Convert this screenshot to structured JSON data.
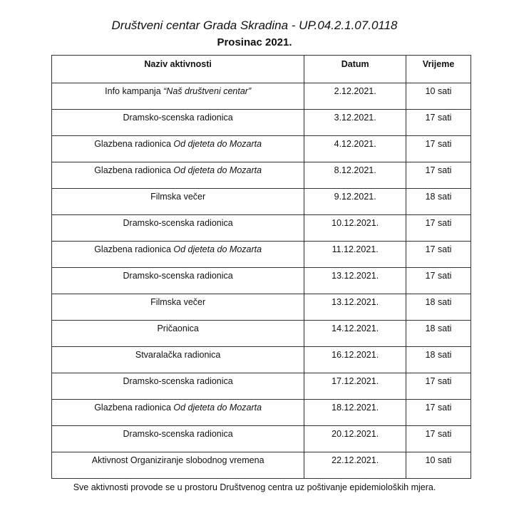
{
  "title": "Društveni centar Grada Skradina - UP.04.2.1.07.0118",
  "subtitle": "Prosinac 2021.",
  "table": {
    "headers": [
      "Naziv aktivnosti",
      "Datum",
      "Vrijeme"
    ],
    "rows": [
      {
        "name": "Info kampanja ",
        "name_italic": "“Naš društveni centar”",
        "date": "2.12.2021.",
        "time": "10 sati"
      },
      {
        "name": "Dramsko-scenska radionica",
        "name_italic": "",
        "date": "3.12.2021.",
        "time": "17 sati"
      },
      {
        "name": "Glazbena radionica ",
        "name_italic": "Od djeteta do Mozarta",
        "date": "4.12.2021.",
        "time": "17 sati"
      },
      {
        "name": "Glazbena radionica ",
        "name_italic": "Od djeteta do Mozarta",
        "date": "8.12.2021.",
        "time": "17 sati"
      },
      {
        "name": "Filmska večer",
        "name_italic": "",
        "date": "9.12.2021.",
        "time": "18 sati"
      },
      {
        "name": "Dramsko-scenska radionica",
        "name_italic": "",
        "date": "10.12.2021.",
        "time": "17 sati"
      },
      {
        "name": "Glazbena radionica ",
        "name_italic": "Od djeteta do Mozarta",
        "date": "11.12.2021.",
        "time": "17 sati"
      },
      {
        "name": "Dramsko-scenska radionica",
        "name_italic": "",
        "date": "13.12.2021.",
        "time": "17 sati"
      },
      {
        "name": "Filmska večer",
        "name_italic": "",
        "date": "13.12.2021.",
        "time": "18 sati"
      },
      {
        "name": "Pričaonica",
        "name_italic": "",
        "date": "14.12.2021.",
        "time": "18 sati"
      },
      {
        "name": "Stvaralačka radionica",
        "name_italic": "",
        "date": "16.12.2021.",
        "time": "18 sati"
      },
      {
        "name": "Dramsko-scenska radionica",
        "name_italic": "",
        "date": "17.12.2021.",
        "time": "17 sati"
      },
      {
        "name": "Glazbena radionica ",
        "name_italic": "Od djeteta do Mozarta",
        "date": "18.12.2021.",
        "time": "17 sati"
      },
      {
        "name": "Dramsko-scenska radionica",
        "name_italic": "",
        "date": "20.12.2021.",
        "time": "17 sati"
      },
      {
        "name": "Aktivnost Organiziranje slobodnog vremena",
        "name_italic": "",
        "date": "22.12.2021.",
        "time": "10 sati"
      }
    ]
  },
  "note": "Sve aktivnosti provode se u prostoru Društvenog centra uz poštivanje epidemioloških mjera."
}
